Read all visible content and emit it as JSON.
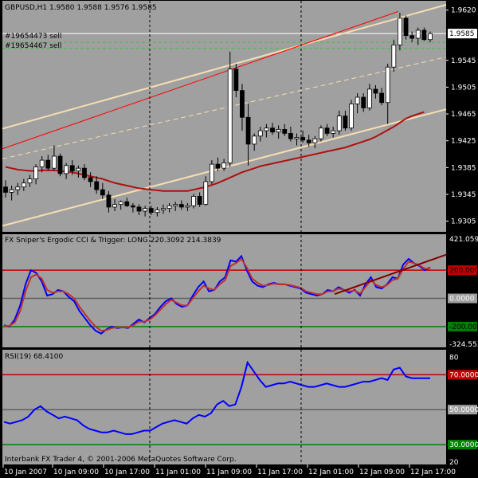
{
  "chart_data": [
    {
      "type": "candlestick",
      "title": "GBPUSD,H1  1.9580 1.9588 1.9576 1.9585",
      "order_labels": [
        "#19654473 sell",
        "#19654467 sell"
      ],
      "current_price": "1.9585",
      "y_tick_labels": [
        "1.9620",
        "1.9585",
        "1.9545",
        "1.9505",
        "1.9465",
        "1.9425",
        "1.9385",
        "1.9345",
        "1.9305"
      ],
      "ylim": [
        1.9295,
        1.9628
      ],
      "candles": [
        [
          1.9356,
          1.9366,
          1.934,
          1.9348
        ],
        [
          1.9348,
          1.9358,
          1.9336,
          1.9352
        ],
        [
          1.9352,
          1.9362,
          1.9344,
          1.9356
        ],
        [
          1.9356,
          1.9368,
          1.935,
          1.9362
        ],
        [
          1.9362,
          1.9374,
          1.9356,
          1.9368
        ],
        [
          1.9368,
          1.939,
          1.936,
          1.9386
        ],
        [
          1.9386,
          1.9402,
          1.9378,
          1.9396
        ],
        [
          1.9396,
          1.9404,
          1.938,
          1.9384
        ],
        [
          1.9384,
          1.9418,
          1.938,
          1.9402
        ],
        [
          1.9402,
          1.9406,
          1.9372,
          1.9376
        ],
        [
          1.9376,
          1.9392,
          1.9368,
          1.9388
        ],
        [
          1.9388,
          1.9396,
          1.9374,
          1.938
        ],
        [
          1.938,
          1.9388,
          1.937,
          1.9384
        ],
        [
          1.9384,
          1.939,
          1.9366,
          1.937
        ],
        [
          1.937,
          1.9378,
          1.9356,
          1.9364
        ],
        [
          1.9364,
          1.9372,
          1.9346,
          1.9352
        ],
        [
          1.9352,
          1.9362,
          1.9338,
          1.9344
        ],
        [
          1.9344,
          1.935,
          1.9318,
          1.9326
        ],
        [
          1.9326,
          1.9338,
          1.932,
          1.933
        ],
        [
          1.933,
          1.9336,
          1.9322,
          1.9334
        ],
        [
          1.9334,
          1.934,
          1.9326,
          1.9328
        ],
        [
          1.9328,
          1.9332,
          1.9318,
          1.9326
        ],
        [
          1.9326,
          1.933,
          1.9314,
          1.932
        ],
        [
          1.932,
          1.9328,
          1.9312,
          1.9324
        ],
        [
          1.9324,
          1.9328,
          1.9314,
          1.9318
        ],
        [
          1.9318,
          1.9326,
          1.9312,
          1.9322
        ],
        [
          1.9322,
          1.933,
          1.9316,
          1.9324
        ],
        [
          1.9324,
          1.9332,
          1.9318,
          1.9328
        ],
        [
          1.9328,
          1.9334,
          1.932,
          1.933
        ],
        [
          1.933,
          1.9336,
          1.9322,
          1.9326
        ],
        [
          1.9326,
          1.9332,
          1.932,
          1.9328
        ],
        [
          1.9328,
          1.9346,
          1.9324,
          1.9342
        ],
        [
          1.9342,
          1.9348,
          1.9326,
          1.933
        ],
        [
          1.933,
          1.9372,
          1.9328,
          1.9364
        ],
        [
          1.9364,
          1.9396,
          1.936,
          1.939
        ],
        [
          1.939,
          1.94,
          1.938,
          1.9384
        ],
        [
          1.9384,
          1.9398,
          1.938,
          1.9392
        ],
        [
          1.9392,
          1.9558,
          1.9386,
          1.9532
        ],
        [
          1.9532,
          1.954,
          1.949,
          1.95
        ],
        [
          1.95,
          1.951,
          1.944,
          1.946
        ],
        [
          1.946,
          1.948,
          1.9388,
          1.942
        ],
        [
          1.942,
          1.9436,
          1.941,
          1.9432
        ],
        [
          1.9432,
          1.9446,
          1.9424,
          1.944
        ],
        [
          1.944,
          1.945,
          1.943,
          1.9444
        ],
        [
          1.9444,
          1.9452,
          1.9434,
          1.9438
        ],
        [
          1.9438,
          1.9448,
          1.9428,
          1.9442
        ],
        [
          1.9442,
          1.945,
          1.9432,
          1.9436
        ],
        [
          1.9436,
          1.9446,
          1.9424,
          1.9428
        ],
        [
          1.9428,
          1.9436,
          1.9418,
          1.943
        ],
        [
          1.943,
          1.944,
          1.9422,
          1.9426
        ],
        [
          1.9426,
          1.9434,
          1.9416,
          1.9422
        ],
        [
          1.9422,
          1.9432,
          1.9414,
          1.9428
        ],
        [
          1.9428,
          1.9448,
          1.9424,
          1.9444
        ],
        [
          1.9444,
          1.945,
          1.9432,
          1.9436
        ],
        [
          1.9436,
          1.9446,
          1.943,
          1.944
        ],
        [
          1.944,
          1.947,
          1.9434,
          1.9462
        ],
        [
          1.9462,
          1.947,
          1.944,
          1.9444
        ],
        [
          1.9444,
          1.9486,
          1.944,
          1.948
        ],
        [
          1.948,
          1.9496,
          1.9466,
          1.949
        ],
        [
          1.949,
          1.9496,
          1.9468,
          1.9474
        ],
        [
          1.9474,
          1.951,
          1.947,
          1.9502
        ],
        [
          1.9502,
          1.9508,
          1.9488,
          1.9496
        ],
        [
          1.9496,
          1.9504,
          1.9478,
          1.9482
        ],
        [
          1.9482,
          1.954,
          1.945,
          1.9535
        ],
        [
          1.9535,
          1.9576,
          1.9528,
          1.9568
        ],
        [
          1.9568,
          1.9616,
          1.956,
          1.9608
        ],
        [
          1.9608,
          1.9612,
          1.9576,
          1.9582
        ],
        [
          1.9582,
          1.9588,
          1.9572,
          1.9578
        ],
        [
          1.9578,
          1.9594,
          1.9568,
          1.959
        ],
        [
          1.959,
          1.9594,
          1.9574,
          1.9576
        ],
        [
          1.9576,
          1.9588,
          1.9572,
          1.9585
        ]
      ],
      "moving_average": [
        1.9386,
        1.9384,
        1.9382,
        1.9381,
        1.938,
        1.938,
        1.9381,
        1.9381,
        1.9381,
        1.938,
        1.9379,
        1.9378,
        1.9376,
        1.9374,
        1.9372,
        1.937,
        1.9368,
        1.9365,
        1.9362,
        1.936,
        1.9358,
        1.9356,
        1.9354,
        1.9353,
        1.9352,
        1.9351,
        1.935,
        1.935,
        1.935,
        1.935,
        1.935,
        1.9352,
        1.9354,
        1.9356,
        1.9359,
        1.9362,
        1.9366,
        1.937,
        1.9374,
        1.9378,
        1.9381,
        1.9384,
        1.9387,
        1.9389,
        1.9391,
        1.9393,
        1.9395,
        1.9397,
        1.9399,
        1.9401,
        1.9403,
        1.9405,
        1.9407,
        1.9409,
        1.9411,
        1.9413,
        1.9415,
        1.9418,
        1.9421,
        1.9424,
        1.9427,
        1.9431,
        1.9436,
        1.9441,
        1.9446,
        1.9452,
        1.9458,
        1.9462,
        1.9465,
        1.9468
      ],
      "channel_upper": [
        1.9443,
        1.9628
      ],
      "channel_mid": [
        1.9398,
        1.955
      ],
      "channel_lower": [
        1.9298,
        1.9472
      ],
      "red_trendline": [
        1.9413,
        1.9618
      ],
      "order_level_1": 1.9585,
      "order_level_2": 1.9572,
      "order_level_3": 1.9563
    },
    {
      "type": "line",
      "title": "FX Sniper's Ergodic CCI & Trigger: LONG 220.3092 214.3839",
      "y_tick_labels": [
        "421.0594",
        "200.0000",
        "0.0000",
        "-200.0000",
        "-324.5530"
      ],
      "levels": [
        200,
        0,
        -200
      ],
      "ylim": [
        -324.553,
        421.0594
      ],
      "series": [
        {
          "name": "Ergodic CCI",
          "values": [
            -190,
            -200,
            -150,
            -50,
            100,
            200,
            180,
            120,
            20,
            30,
            60,
            50,
            10,
            -20,
            -90,
            -140,
            -190,
            -230,
            -250,
            -220,
            -200,
            -210,
            -205,
            -210,
            -180,
            -150,
            -170,
            -140,
            -110,
            -60,
            -20,
            0,
            -40,
            -60,
            -50,
            20,
            80,
            120,
            50,
            60,
            120,
            150,
            270,
            260,
            300,
            200,
            120,
            90,
            80,
            100,
            110,
            100,
            100,
            90,
            80,
            70,
            40,
            30,
            20,
            30,
            60,
            50,
            80,
            60,
            40,
            60,
            20,
            100,
            150,
            80,
            70,
            100,
            150,
            140,
            240,
            280,
            250,
            230,
            200,
            220
          ]
        },
        {
          "name": "Trigger",
          "values": [
            -195,
            -195,
            -170,
            -90,
            50,
            150,
            170,
            140,
            60,
            40,
            50,
            50,
            30,
            0,
            -60,
            -110,
            -160,
            -200,
            -230,
            -225,
            -210,
            -205,
            -205,
            -205,
            -190,
            -165,
            -165,
            -150,
            -120,
            -80,
            -40,
            -10,
            -30,
            -50,
            -50,
            0,
            50,
            90,
            70,
            60,
            100,
            130,
            230,
            250,
            280,
            220,
            140,
            110,
            90,
            95,
            105,
            100,
            100,
            95,
            85,
            75,
            50,
            40,
            30,
            30,
            50,
            50,
            70,
            60,
            50,
            55,
            35,
            80,
            130,
            95,
            80,
            95,
            130,
            140,
            210,
            260,
            250,
            235,
            210,
            214
          ]
        }
      ],
      "trendline": [
        30,
        310
      ]
    },
    {
      "type": "line",
      "title": "RSI(19) 68.4100",
      "y_tick_labels": [
        "80",
        "70.0000",
        "50.0000",
        "30.0000",
        "20"
      ],
      "levels": [
        70,
        50,
        30
      ],
      "ylim": [
        20,
        82
      ],
      "series": [
        {
          "name": "RSI",
          "values": [
            43,
            42,
            43,
            44,
            46,
            50,
            52,
            49,
            47,
            45,
            46,
            45,
            44,
            41,
            39,
            38,
            37,
            37,
            38,
            37,
            36,
            36,
            37,
            38,
            38,
            40,
            42,
            43,
            44,
            43,
            42,
            45,
            47,
            46,
            48,
            53,
            55,
            52,
            53,
            63,
            77,
            72,
            67,
            63,
            64,
            65,
            65,
            66,
            65,
            64,
            63,
            63,
            64,
            65,
            64,
            63,
            63,
            64,
            65,
            66,
            66,
            67,
            68,
            67,
            73,
            74,
            69,
            68,
            68,
            68,
            68
          ]
        }
      ]
    }
  ],
  "time_labels": [
    "10 Jan 2007",
    "10 Jan 09:00",
    "10 Jan 17:00",
    "11 Jan 01:00",
    "11 Jan 09:00",
    "11 Jan 17:00",
    "12 Jan 01:00",
    "12 Jan 09:00",
    "12 Jan 17:00"
  ],
  "footer": "Interbank FX Trader 4, © 2001-2006 MetaQuotes Software Corp.",
  "colors": {
    "plot_bg": "#a0a0a0",
    "candle_bull": "#ffffff",
    "candle_bear": "#000000",
    "ma": "#b01010",
    "channel": "#f5deb3",
    "red_line": "#ff0000",
    "level_red": "#c00000",
    "level_gray": "#606060",
    "level_green": "#008000",
    "cci": "#0000ff",
    "trigger": "#c03030",
    "rsi": "#0000ff",
    "trendline_dark": "#800000"
  }
}
